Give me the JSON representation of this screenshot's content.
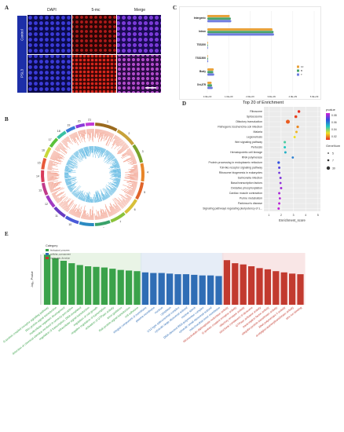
{
  "panels": {
    "A": "A",
    "B": "B",
    "C": "C",
    "D": "D",
    "E": "E"
  },
  "panelA": {
    "columns": [
      "DAPI",
      "5-mc",
      "Merge"
    ],
    "rows": [
      "Control",
      "PSL3"
    ]
  },
  "panelB": {
    "chromosomes": [
      "1",
      "2",
      "3",
      "4",
      "5",
      "6",
      "7",
      "8",
      "9",
      "10",
      "11",
      "12",
      "13",
      "14",
      "15",
      "16",
      "17",
      "18",
      "19",
      "20",
      "21"
    ]
  },
  "panelC": {
    "chart_data": {
      "type": "bar",
      "orientation": "horizontal",
      "categories": [
        "Intergenic",
        "Intron",
        "TSS200",
        "TSS1500",
        "Body",
        "5'nUTR"
      ],
      "series": [
        {
          "name": "10",
          "color": "#e8a23c",
          "values": [
            1050000000.0,
            3050000000.0,
            20000000.0,
            30000000.0,
            300000000.0,
            200000000.0
          ]
        },
        {
          "name": "B",
          "color": "#4aa36a",
          "values": [
            1100000000.0,
            3100000000.0,
            25000000.0,
            35000000.0,
            280000000.0,
            220000000.0
          ]
        },
        {
          "name": "T",
          "color": "#6f7ce0",
          "values": [
            1120000000.0,
            3120000000.0,
            30000000.0,
            40000000.0,
            320000000.0,
            250000000.0
          ]
        }
      ],
      "legend": [
        "10",
        "B",
        "T"
      ],
      "xticks": [
        "0.0E+00",
        "1.0E+09",
        "2.0E+09",
        "3.0E+09",
        "4.0E+09",
        "5.0E+09"
      ],
      "xlim": [
        0,
        5000000000.0
      ]
    }
  },
  "panelD": {
    "chart_data": {
      "type": "scatter",
      "title": "Top 20 of Enrichment",
      "xlabel": "Enrichment_score",
      "xticks": [
        "1",
        "2",
        "3",
        "4",
        "5"
      ],
      "xlim": [
        0.6,
        5.2
      ],
      "categories": [
        "Ribosome",
        "Spliceosome",
        "Olfactory transduction",
        "Pathogenic Escherichia coli infection",
        "Malaria",
        "Legionellosis",
        "Wnt signaling pathway",
        "Pertussis",
        "Hematopoietic cell lineage",
        "RNA polymerase",
        "Protein processing in endoplasmic reticulum",
        "Toll-like receptor signaling pathway",
        "Ribosome biogenesis in eukaryotes",
        "Salmonella infection",
        "Basal transcription factors",
        "Oxidative phosphorylation",
        "Cardiac muscle contraction",
        "Purine metabolism",
        "Parkinson's disease",
        "Signaling pathways regulating pluripotency of s..."
      ],
      "x": [
        3.45,
        3.2,
        2.55,
        3.35,
        3.25,
        3.1,
        2.3,
        2.3,
        2.35,
        2.95,
        1.8,
        1.85,
        1.85,
        1.95,
        1.95,
        2.0,
        1.85,
        1.9,
        1.85,
        1.8
      ],
      "pvalue": [
        0.01,
        0.012,
        0.015,
        0.02,
        0.025,
        0.03,
        0.05,
        0.055,
        0.06,
        0.07,
        0.08,
        0.085,
        0.088,
        0.09,
        0.092,
        0.094,
        0.095,
        0.096,
        0.097,
        0.098
      ],
      "genecount": [
        10,
        12,
        32,
        8,
        6,
        6,
        7,
        6,
        6,
        5,
        8,
        6,
        5,
        6,
        5,
        6,
        6,
        5,
        6,
        6
      ],
      "legend_pvalue_title": "pvalue",
      "legend_pvalue_ticks": [
        "0.08",
        "0.06",
        "0.04",
        "0.02"
      ],
      "legend_count_title": "GeneNum",
      "legend_count_ticks": [
        "5",
        "7",
        "30"
      ]
    }
  },
  "panelE": {
    "chart_data": {
      "type": "bar",
      "ylabel": "-log₁₀ Pvalue",
      "legend_title": "Category",
      "legend": [
        {
          "name": "biological_process",
          "color": "#3aa24a"
        },
        {
          "name": "cellular_component",
          "color": "#2f6db5"
        },
        {
          "name": "molecular_function",
          "color": "#c23a2f"
        }
      ],
      "categories": [
        "G-protein coupled receptor signaling pathway",
        "Rho protein signal transduction",
        "multicellular organism development",
        "detection of chemical stimulus involved in sensory perception",
        "regulation of transcription, DNA-templated",
        "intracellular signal transduction",
        "regulation of cell growth",
        "negative regulation of transcription",
        "activation of GTPase activity",
        "axon guidance",
        "Rab protein signal transduction",
        "cell adhesion",
        "integral component of membrane",
        "plasma membrane",
        "nucleus",
        "cytoplasm",
        "U12-type spliceosomal complex",
        "cytosolic large ribosomal subunit",
        "nuclear speck",
        "DNA-directed RNA polymerase complex",
        "cytosolic small ribosomal subunit",
        "mitochondrial inner membrane",
        "ribonucleotide-diphosphate reductase activity",
        "G-protein coupled receptor activity",
        "olfactory receptor activity",
        "structural constituent of ribosome",
        "GTPase activator activity",
        "transcription factor activity",
        "ubiquitin-protein transferase activity",
        "RNA polymerase II activity",
        "acetylglucosaminyltransferase activity",
        "zinc ion binding"
      ],
      "groups": [
        "bp",
        "bp",
        "bp",
        "bp",
        "bp",
        "bp",
        "bp",
        "bp",
        "bp",
        "bp",
        "bp",
        "bp",
        "cc",
        "cc",
        "cc",
        "cc",
        "cc",
        "cc",
        "cc",
        "cc",
        "cc",
        "cc",
        "mf",
        "mf",
        "mf",
        "mf",
        "mf",
        "mf",
        "mf",
        "mf",
        "mf",
        "mf"
      ],
      "values": [
        8.2,
        7.6,
        7.2,
        6.8,
        6.5,
        6.3,
        6.2,
        6.1,
        5.9,
        5.7,
        5.6,
        5.5,
        5.3,
        5.2,
        5.2,
        5.1,
        5.0,
        5.0,
        4.9,
        4.8,
        4.8,
        4.7,
        7.3,
        6.8,
        6.6,
        6.3,
        6.0,
        5.8,
        5.5,
        5.3,
        5.1,
        5.0
      ]
    }
  }
}
